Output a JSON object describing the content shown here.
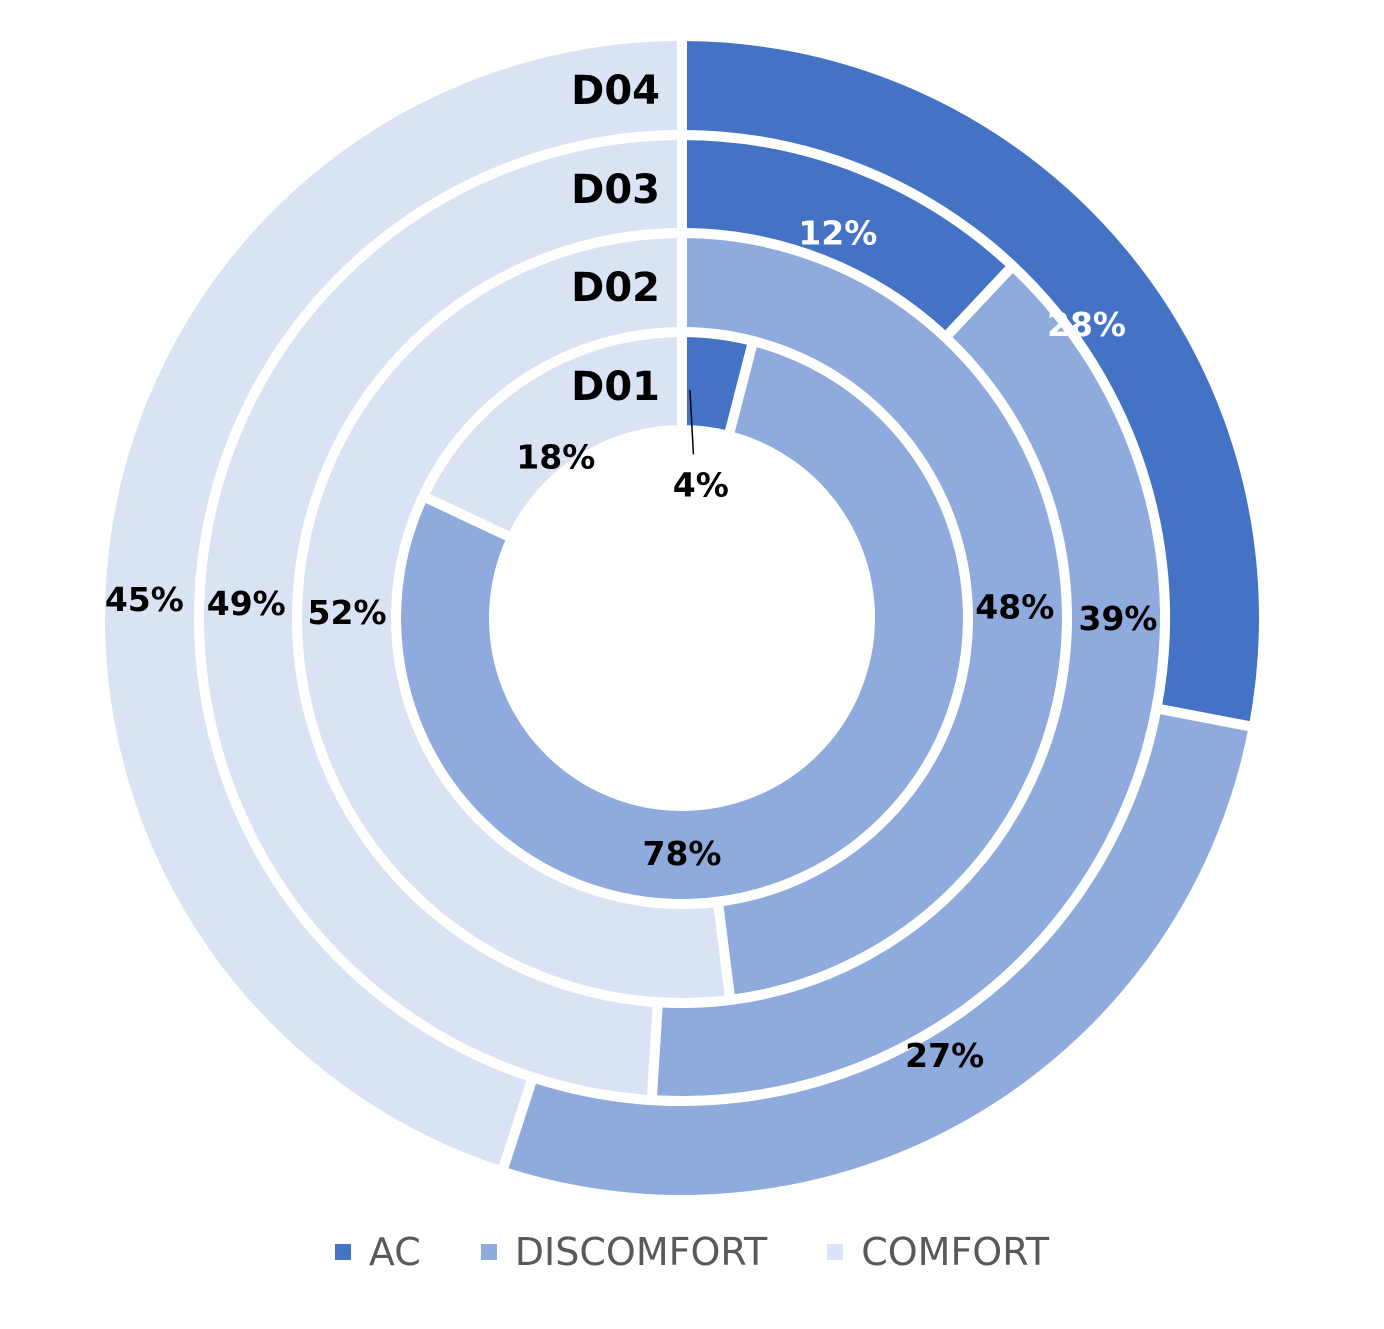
{
  "chart_data": {
    "type": "doughnut",
    "rings": [
      "D01",
      "D02",
      "D03",
      "D04"
    ],
    "categories": [
      "AC",
      "DISCOMFORT",
      "COMFORT"
    ],
    "colors": {
      "AC": "#4472C4",
      "DISCOMFORT": "#8FAADC",
      "COMFORT": "#DAE3F3"
    },
    "series": [
      {
        "name": "D01",
        "values": [
          4,
          78,
          18
        ],
        "labels": [
          "4%",
          "78%",
          "18%"
        ]
      },
      {
        "name": "D02",
        "values": [
          0,
          48,
          52
        ],
        "labels": [
          "",
          "48%",
          "52%"
        ]
      },
      {
        "name": "D03",
        "values": [
          12,
          39,
          49
        ],
        "labels": [
          "12%",
          "39%",
          "49%"
        ]
      },
      {
        "name": "D04",
        "values": [
          28,
          27,
          45
        ],
        "labels": [
          "28%",
          "27%",
          "45%"
        ]
      }
    ],
    "legend": {
      "position": "bottom",
      "items": [
        "AC",
        "DISCOMFORT",
        "COMFORT"
      ]
    }
  }
}
